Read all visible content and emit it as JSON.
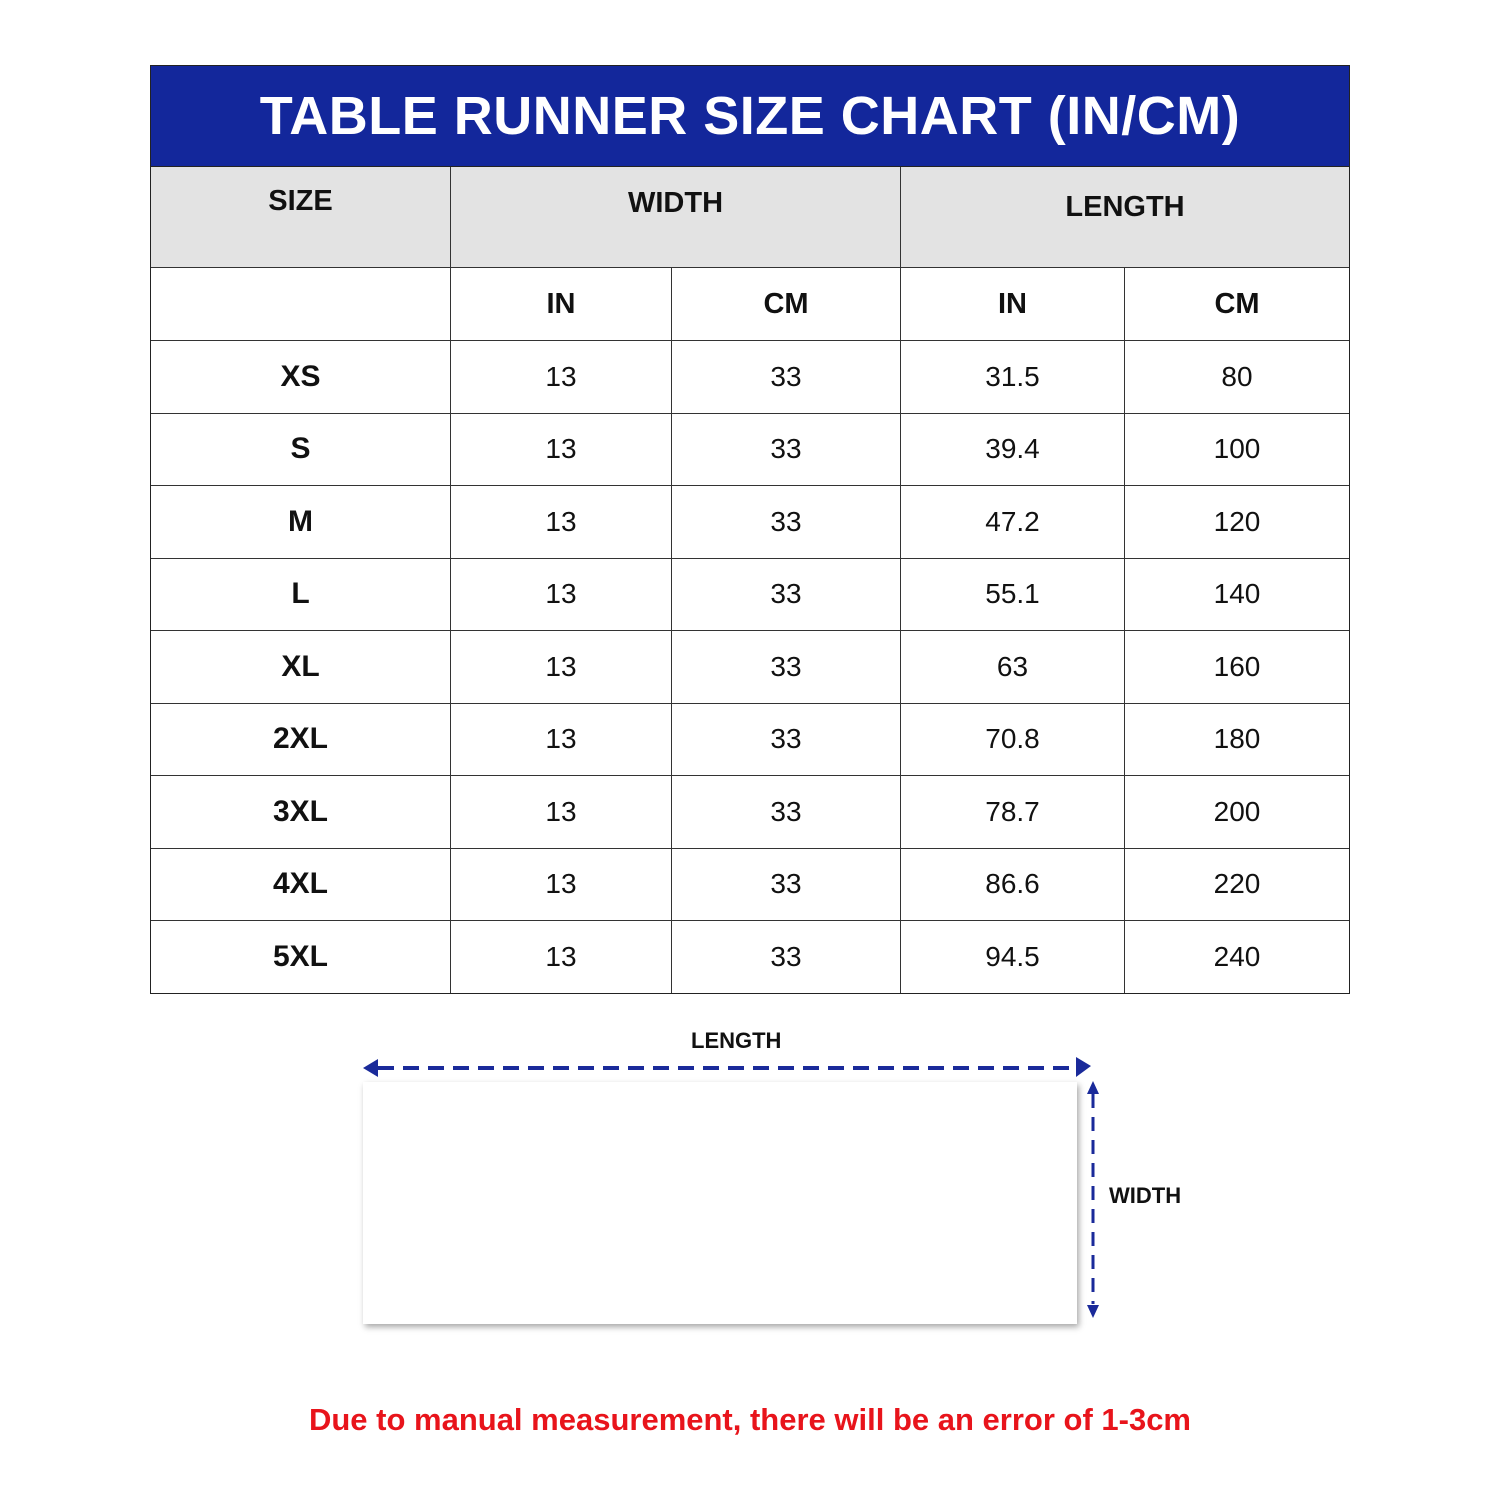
{
  "title": "TABLE RUNNER SIZE CHART (IN/CM)",
  "headers": {
    "size": "SIZE",
    "width": "WIDTH",
    "length": "LENGTH"
  },
  "subheaders": {
    "blank": "",
    "width_in": "IN",
    "width_cm": "CM",
    "length_in": "IN",
    "length_cm": "CM"
  },
  "rows": [
    {
      "size": "XS",
      "width_in": "13",
      "width_cm": "33",
      "length_in": "31.5",
      "length_cm": "80"
    },
    {
      "size": "S",
      "width_in": "13",
      "width_cm": "33",
      "length_in": "39.4",
      "length_cm": "100"
    },
    {
      "size": "M",
      "width_in": "13",
      "width_cm": "33",
      "length_in": "47.2",
      "length_cm": "120"
    },
    {
      "size": "L",
      "width_in": "13",
      "width_cm": "33",
      "length_in": "55.1",
      "length_cm": "140"
    },
    {
      "size": "XL",
      "width_in": "13",
      "width_cm": "33",
      "length_in": "63",
      "length_cm": "160"
    },
    {
      "size": "2XL",
      "width_in": "13",
      "width_cm": "33",
      "length_in": "70.8",
      "length_cm": "180"
    },
    {
      "size": "3XL",
      "width_in": "13",
      "width_cm": "33",
      "length_in": "78.7",
      "length_cm": "200"
    },
    {
      "size": "4XL",
      "width_in": "13",
      "width_cm": "33",
      "length_in": "86.6",
      "length_cm": "220"
    },
    {
      "size": "5XL",
      "width_in": "13",
      "width_cm": "33",
      "length_in": "94.5",
      "length_cm": "240"
    }
  ],
  "diagram": {
    "length_label": "LENGTH",
    "width_label": "WIDTH"
  },
  "note": "Due to manual measurement, there will be an error of 1-3cm",
  "colors": {
    "title_bg": "#13279b",
    "header_bg": "#e3e3e3",
    "arrow": "#1a2a9a",
    "note": "#e8141b"
  }
}
